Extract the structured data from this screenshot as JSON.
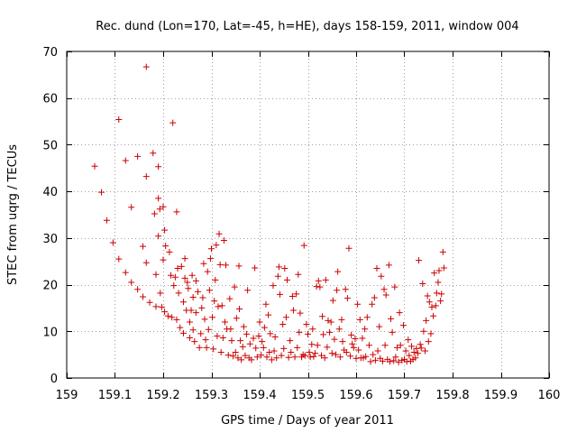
{
  "chart_data": {
    "type": "scatter",
    "title": "Rec. dund (Lon=170, Lat=-45, h=HE), days 158-159, 2011, window 004",
    "xlabel": "GPS time / Days of year 2011",
    "ylabel": "STEC from uqrg / TECUs",
    "xlim": [
      159,
      160
    ],
    "ylim": [
      0,
      70
    ],
    "xticks": [
      159,
      159.1,
      159.2,
      159.3,
      159.4,
      159.5,
      159.6,
      159.7,
      159.8,
      159.9,
      160
    ],
    "xtick_labels": [
      "159",
      "159.1",
      "159.2",
      "159.3",
      "159.4",
      "159.5",
      "159.6",
      "159.7",
      "159.8",
      "159.9",
      "160"
    ],
    "yticks": [
      0,
      10,
      20,
      30,
      40,
      50,
      60,
      70
    ],
    "ytick_labels": [
      "0",
      "10",
      "20",
      "30",
      "40",
      "50",
      "60",
      "70"
    ],
    "grid": true,
    "marker": "+",
    "color": "#cc0000",
    "series": [
      {
        "name": "STEC",
        "points": [
          [
            159.058,
            45.4
          ],
          [
            159.072,
            39.8
          ],
          [
            159.083,
            33.8
          ],
          [
            159.096,
            29.0
          ],
          [
            159.108,
            55.4
          ],
          [
            159.108,
            25.5
          ],
          [
            159.122,
            46.6
          ],
          [
            159.122,
            22.6
          ],
          [
            159.134,
            36.6
          ],
          [
            159.134,
            20.5
          ],
          [
            159.147,
            47.5
          ],
          [
            159.147,
            19.0
          ],
          [
            159.158,
            28.2
          ],
          [
            159.158,
            17.4
          ],
          [
            159.165,
            66.7
          ],
          [
            159.165,
            43.2
          ],
          [
            159.165,
            24.7
          ],
          [
            159.172,
            16.2
          ],
          [
            159.179,
            48.2
          ],
          [
            159.182,
            35.2
          ],
          [
            159.185,
            22.2
          ],
          [
            159.185,
            15.3
          ],
          [
            159.19,
            45.3
          ],
          [
            159.19,
            38.5
          ],
          [
            159.19,
            30.4
          ],
          [
            159.193,
            36.2
          ],
          [
            159.194,
            18.2
          ],
          [
            159.197,
            15.2
          ],
          [
            159.2,
            36.7
          ],
          [
            159.2,
            25.3
          ],
          [
            159.203,
            31.7
          ],
          [
            159.203,
            14.2
          ],
          [
            159.205,
            28.3
          ],
          [
            159.21,
            13.3
          ],
          [
            159.213,
            27.0
          ],
          [
            159.216,
            22.0
          ],
          [
            159.218,
            13.0
          ],
          [
            159.22,
            54.7
          ],
          [
            159.222,
            19.8
          ],
          [
            159.225,
            21.6
          ],
          [
            159.228,
            35.6
          ],
          [
            159.228,
            12.5
          ],
          [
            159.23,
            23.5
          ],
          [
            159.232,
            18.2
          ],
          [
            159.235,
            10.8
          ],
          [
            159.238,
            23.9
          ],
          [
            159.242,
            16.3
          ],
          [
            159.242,
            9.6
          ],
          [
            159.245,
            25.6
          ],
          [
            159.245,
            21.4
          ],
          [
            159.248,
            14.5
          ],
          [
            159.25,
            20.5
          ],
          [
            159.252,
            19.2
          ],
          [
            159.255,
            8.6
          ],
          [
            159.255,
            12.0
          ],
          [
            159.258,
            14.5
          ],
          [
            159.26,
            22.0
          ],
          [
            159.262,
            17.3
          ],
          [
            159.262,
            10.3
          ],
          [
            159.265,
            7.8
          ],
          [
            159.268,
            20.8
          ],
          [
            159.268,
            14.0
          ],
          [
            159.272,
            18.5
          ],
          [
            159.275,
            6.5
          ],
          [
            159.278,
            9.5
          ],
          [
            159.28,
            15.0
          ],
          [
            159.282,
            17.2
          ],
          [
            159.284,
            24.5
          ],
          [
            159.286,
            12.6
          ],
          [
            159.288,
            8.2
          ],
          [
            159.29,
            6.5
          ],
          [
            159.292,
            22.8
          ],
          [
            159.294,
            10.4
          ],
          [
            159.296,
            18.8
          ],
          [
            159.298,
            25.6
          ],
          [
            159.3,
            27.7
          ],
          [
            159.302,
            13.0
          ],
          [
            159.304,
            6.2
          ],
          [
            159.306,
            16.5
          ],
          [
            159.308,
            21.0
          ],
          [
            159.31,
            28.5
          ],
          [
            159.312,
            9.0
          ],
          [
            159.314,
            15.3
          ],
          [
            159.316,
            30.9
          ],
          [
            159.318,
            24.3
          ],
          [
            159.32,
            5.5
          ],
          [
            159.322,
            15.5
          ],
          [
            159.324,
            8.6
          ],
          [
            159.326,
            29.5
          ],
          [
            159.328,
            12.0
          ],
          [
            159.33,
            24.2
          ],
          [
            159.332,
            10.5
          ],
          [
            159.335,
            4.9
          ],
          [
            159.338,
            17.0
          ],
          [
            159.34,
            10.5
          ],
          [
            159.342,
            8.0
          ],
          [
            159.345,
            4.7
          ],
          [
            159.348,
            19.5
          ],
          [
            159.35,
            5.5
          ],
          [
            159.352,
            12.8
          ],
          [
            159.355,
            4.3
          ],
          [
            159.357,
            24.0
          ],
          [
            159.358,
            14.8
          ],
          [
            159.36,
            8.0
          ],
          [
            159.362,
            3.9
          ],
          [
            159.365,
            6.7
          ],
          [
            159.367,
            11.0
          ],
          [
            159.37,
            4.8
          ],
          [
            159.373,
            9.4
          ],
          [
            159.375,
            18.8
          ],
          [
            159.378,
            4.3
          ],
          [
            159.38,
            7.3
          ],
          [
            159.383,
            3.9
          ],
          [
            159.387,
            8.5
          ],
          [
            159.39,
            23.6
          ],
          [
            159.392,
            6.4
          ],
          [
            159.395,
            4.5
          ],
          [
            159.398,
            9.0
          ],
          [
            159.4,
            12.0
          ],
          [
            159.403,
            4.9
          ],
          [
            159.405,
            7.8
          ],
          [
            159.408,
            6.5
          ],
          [
            159.41,
            10.8
          ],
          [
            159.413,
            15.8
          ],
          [
            159.415,
            4.5
          ],
          [
            159.418,
            13.5
          ],
          [
            159.42,
            5.5
          ],
          [
            159.422,
            9.5
          ],
          [
            159.425,
            3.9
          ],
          [
            159.428,
            19.8
          ],
          [
            159.43,
            5.8
          ],
          [
            159.432,
            8.8
          ],
          [
            159.435,
            4.3
          ],
          [
            159.438,
            21.8
          ],
          [
            159.44,
            23.8
          ],
          [
            159.442,
            17.9
          ],
          [
            159.445,
            4.8
          ],
          [
            159.448,
            11.5
          ],
          [
            159.45,
            6.3
          ],
          [
            159.452,
            23.5
          ],
          [
            159.455,
            13.0
          ],
          [
            159.457,
            21.0
          ],
          [
            159.46,
            4.4
          ],
          [
            159.463,
            8.0
          ],
          [
            159.465,
            5.5
          ],
          [
            159.468,
            17.5
          ],
          [
            159.47,
            14.5
          ],
          [
            159.473,
            4.5
          ],
          [
            159.476,
            18.0
          ],
          [
            159.478,
            6.5
          ],
          [
            159.48,
            22.2
          ],
          [
            159.482,
            9.8
          ],
          [
            159.484,
            13.9
          ],
          [
            159.487,
            4.5
          ],
          [
            159.49,
            5.0
          ],
          [
            159.492,
            28.4
          ],
          [
            159.494,
            4.8
          ],
          [
            159.497,
            11.5
          ],
          [
            159.5,
            9.4
          ],
          [
            159.503,
            5.5
          ],
          [
            159.505,
            4.5
          ],
          [
            159.508,
            7.2
          ],
          [
            159.51,
            10.5
          ],
          [
            159.512,
            4.6
          ],
          [
            159.515,
            5.3
          ],
          [
            159.518,
            19.6
          ],
          [
            159.52,
            7.0
          ],
          [
            159.522,
            20.8
          ],
          [
            159.525,
            19.5
          ],
          [
            159.528,
            4.8
          ],
          [
            159.53,
            13.2
          ],
          [
            159.532,
            9.3
          ],
          [
            159.535,
            4.3
          ],
          [
            159.537,
            21.0
          ],
          [
            159.54,
            6.6
          ],
          [
            159.542,
            12.3
          ],
          [
            159.545,
            9.8
          ],
          [
            159.548,
            12.0
          ],
          [
            159.55,
            5.3
          ],
          [
            159.552,
            16.6
          ],
          [
            159.555,
            8.3
          ],
          [
            159.558,
            5.0
          ],
          [
            159.56,
            18.8
          ],
          [
            159.562,
            22.8
          ],
          [
            159.565,
            10.5
          ],
          [
            159.567,
            4.5
          ],
          [
            159.57,
            12.5
          ],
          [
            159.572,
            7.8
          ],
          [
            159.575,
            6.0
          ],
          [
            159.578,
            19.0
          ],
          [
            159.58,
            5.5
          ],
          [
            159.582,
            17.1
          ],
          [
            159.585,
            27.8
          ],
          [
            159.588,
            4.7
          ],
          [
            159.59,
            9.2
          ],
          [
            159.592,
            7.3
          ],
          [
            159.595,
            6.5
          ],
          [
            159.598,
            8.4
          ],
          [
            159.6,
            4.2
          ],
          [
            159.603,
            15.8
          ],
          [
            159.605,
            6.0
          ],
          [
            159.608,
            12.5
          ],
          [
            159.61,
            4.3
          ],
          [
            159.613,
            8.5
          ],
          [
            159.615,
            4.3
          ],
          [
            159.618,
            10.5
          ],
          [
            159.62,
            4.6
          ],
          [
            159.623,
            13.0
          ],
          [
            159.627,
            7.0
          ],
          [
            159.63,
            3.5
          ],
          [
            159.633,
            15.8
          ],
          [
            159.635,
            5.0
          ],
          [
            159.638,
            17.2
          ],
          [
            159.64,
            3.8
          ],
          [
            159.643,
            23.5
          ],
          [
            159.645,
            5.8
          ],
          [
            159.648,
            11.0
          ],
          [
            159.65,
            4.2
          ],
          [
            159.652,
            21.8
          ],
          [
            159.655,
            3.6
          ],
          [
            159.658,
            19.0
          ],
          [
            159.66,
            7.0
          ],
          [
            159.662,
            17.8
          ],
          [
            159.665,
            4.0
          ],
          [
            159.668,
            24.2
          ],
          [
            159.67,
            3.5
          ],
          [
            159.672,
            12.7
          ],
          [
            159.675,
            9.8
          ],
          [
            159.678,
            3.7
          ],
          [
            159.68,
            19.5
          ],
          [
            159.682,
            4.5
          ],
          [
            159.685,
            6.5
          ],
          [
            159.688,
            3.4
          ],
          [
            159.69,
            14.0
          ],
          [
            159.692,
            7.0
          ],
          [
            159.695,
            3.8
          ],
          [
            159.698,
            11.3
          ],
          [
            159.7,
            4.0
          ],
          [
            159.703,
            5.8
          ],
          [
            159.705,
            3.5
          ],
          [
            159.708,
            8.2
          ],
          [
            159.71,
            4.8
          ],
          [
            159.713,
            3.6
          ],
          [
            159.715,
            6.8
          ],
          [
            159.718,
            4.0
          ],
          [
            159.72,
            5.5
          ],
          [
            159.723,
            4.3
          ],
          [
            159.725,
            6.3
          ],
          [
            159.728,
            5.3
          ],
          [
            159.73,
            25.2
          ],
          [
            159.733,
            7.2
          ],
          [
            159.735,
            6.4
          ],
          [
            159.738,
            20.2
          ],
          [
            159.74,
            10.0
          ],
          [
            159.743,
            5.8
          ],
          [
            159.745,
            12.3
          ],
          [
            159.748,
            17.6
          ],
          [
            159.75,
            7.8
          ],
          [
            159.752,
            16.3
          ],
          [
            159.755,
            9.5
          ],
          [
            159.757,
            15.2
          ],
          [
            159.76,
            13.3
          ],
          [
            159.762,
            22.5
          ],
          [
            159.765,
            15.5
          ],
          [
            159.767,
            18.2
          ],
          [
            159.77,
            20.5
          ],
          [
            159.772,
            23.0
          ],
          [
            159.775,
            16.5
          ],
          [
            159.777,
            18.0
          ],
          [
            159.78,
            27.0
          ],
          [
            159.782,
            23.6
          ]
        ]
      }
    ]
  }
}
